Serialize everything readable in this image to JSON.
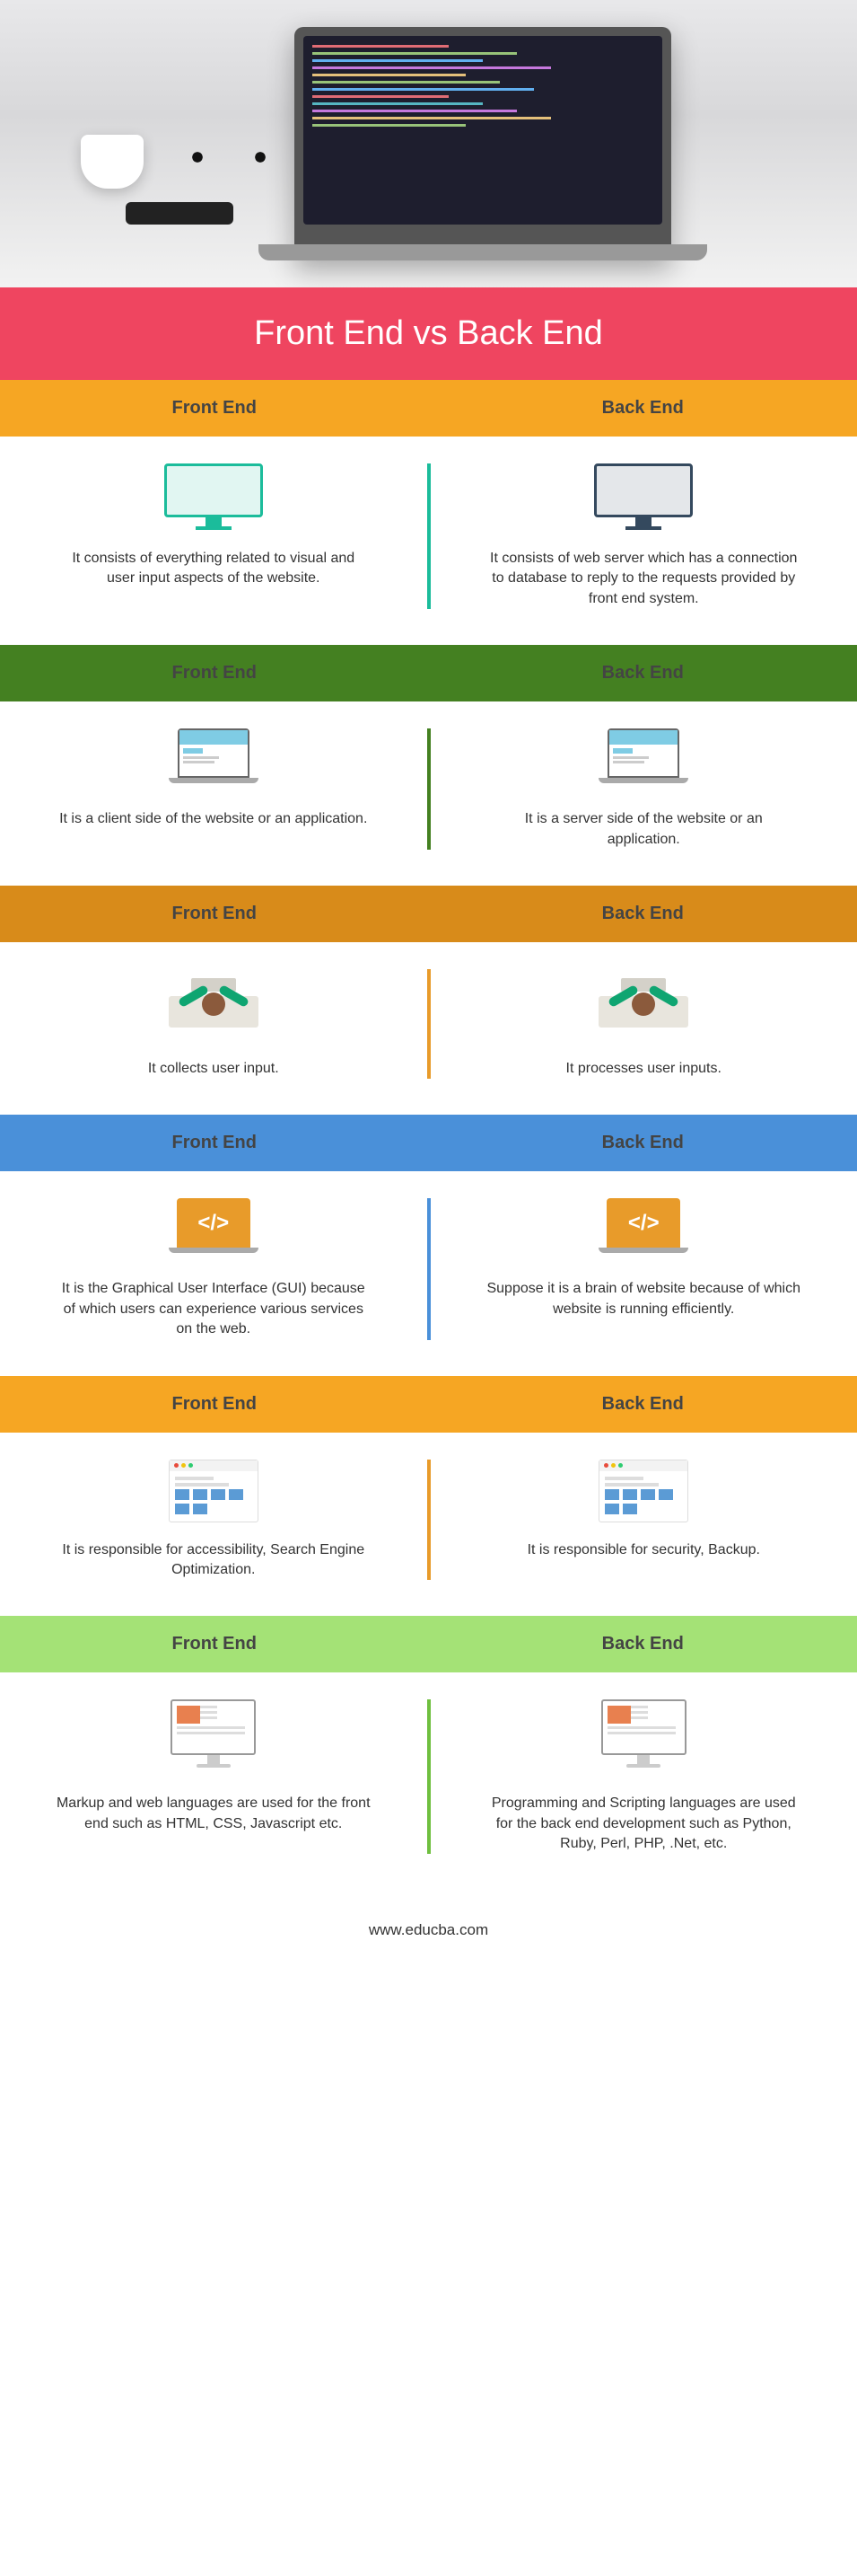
{
  "title": "Front End vs Back End",
  "labels": {
    "left": "Front End",
    "right": "Back End"
  },
  "footer": "www.educba.com",
  "colors": {
    "title_bg": "#ef4560",
    "title_text": "#ffffff"
  },
  "sections": [
    {
      "header_bg": "#f6a623",
      "divider_color": "#1bbc9b",
      "icon": "monitor",
      "icon_color_left": "#1bbc9b",
      "icon_color_right": "#34495e",
      "left": "It consists of everything related to visual and user input aspects of the website.",
      "right": "It consists of web server which has a connection to database to reply to the requests provided by front end system."
    },
    {
      "header_bg": "#448021",
      "divider_color": "#448021",
      "icon": "laptop-browser",
      "left": "It is a client side of the website or an application.",
      "right": "It is a server side of the website or an application."
    },
    {
      "header_bg": "#d88b1a",
      "divider_color": "#e89b2a",
      "icon": "person-desk",
      "left": "It collects user input.",
      "right": "It processes user inputs."
    },
    {
      "header_bg": "#4a90d9",
      "divider_color": "#4a90d9",
      "icon": "code-laptop",
      "icon_bg": "#e89b2a",
      "left": "It is the Graphical User Interface (GUI) because of which users can experience various services on the web.",
      "right": "Suppose it is a brain of website because of which website is running efficiently."
    },
    {
      "header_bg": "#f6a623",
      "divider_color": "#e89b2a",
      "icon": "browser-window",
      "left": "It is responsible for accessibility, Search Engine Optimization.",
      "right": "It is responsible for security, Backup."
    },
    {
      "header_bg": "#a4e276",
      "divider_color": "#6fbf3f",
      "icon": "desktop-page",
      "left": "Markup and web languages are used for the front end such as HTML, CSS, Javascript etc.",
      "right": "Programming and Scripting languages are used for the back end development such as Python, Ruby, Perl, PHP, .Net, etc."
    }
  ]
}
